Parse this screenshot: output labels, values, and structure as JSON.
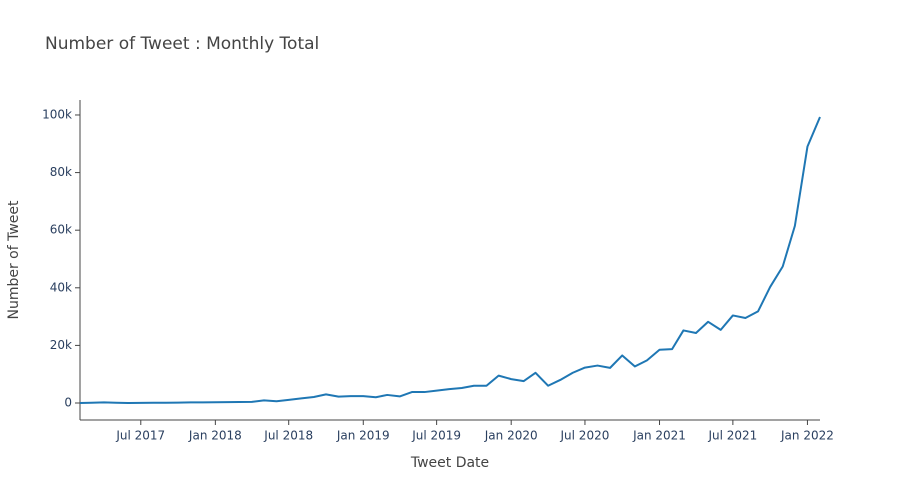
{
  "chart_data": {
    "type": "line",
    "title": "Number of Tweet : Monthly Total",
    "x_label": "Tweet Date",
    "y_label": "Number of Tweet",
    "x": [
      "2017-02",
      "2017-03",
      "2017-04",
      "2017-05",
      "2017-06",
      "2017-07",
      "2017-08",
      "2017-09",
      "2017-10",
      "2017-11",
      "2017-12",
      "2018-01",
      "2018-02",
      "2018-03",
      "2018-04",
      "2018-05",
      "2018-06",
      "2018-07",
      "2018-08",
      "2018-09",
      "2018-10",
      "2018-11",
      "2018-12",
      "2019-01",
      "2019-02",
      "2019-03",
      "2019-04",
      "2019-05",
      "2019-06",
      "2019-07",
      "2019-08",
      "2019-09",
      "2019-10",
      "2019-11",
      "2019-12",
      "2020-01",
      "2020-02",
      "2020-03",
      "2020-04",
      "2020-05",
      "2020-06",
      "2020-07",
      "2020-08",
      "2020-09",
      "2020-10",
      "2020-11",
      "2020-12",
      "2021-01",
      "2021-02",
      "2021-03",
      "2021-04",
      "2021-05",
      "2021-06",
      "2021-07",
      "2021-08",
      "2021-09",
      "2021-10",
      "2021-11",
      "2021-12",
      "2022-01",
      "2022-02"
    ],
    "series": [
      {
        "color": "#1f77b4",
        "values": [
          0,
          100,
          200,
          100,
          0,
          50,
          100,
          100,
          150,
          200,
          200,
          250,
          300,
          350,
          400,
          900,
          600,
          1100,
          1600,
          2100,
          3000,
          2200,
          2400,
          2400,
          2000,
          2800,
          2300,
          3800,
          3800,
          4300,
          4800,
          5200,
          6000,
          6000,
          9500,
          8300,
          7600,
          10500,
          6000,
          8000,
          10500,
          12300,
          13000,
          12200,
          16500,
          12700,
          14800,
          18500,
          18700,
          25200,
          24300,
          28200,
          25400,
          30400,
          29500,
          31800,
          40300,
          47400,
          61500,
          89000,
          99300
        ]
      }
    ],
    "xlim": [
      "2017-02",
      "2022-02"
    ],
    "xticks": [
      {
        "value": "2017-07",
        "label": "Jul 2017"
      },
      {
        "value": "2018-01",
        "label": "Jan 2018"
      },
      {
        "value": "2018-07",
        "label": "Jul 2018"
      },
      {
        "value": "2019-01",
        "label": "Jan 2019"
      },
      {
        "value": "2019-07",
        "label": "Jul 2019"
      },
      {
        "value": "2020-01",
        "label": "Jan 2020"
      },
      {
        "value": "2020-07",
        "label": "Jul 2020"
      },
      {
        "value": "2021-01",
        "label": "Jan 2021"
      },
      {
        "value": "2021-07",
        "label": "Jul 2021"
      },
      {
        "value": "2022-01",
        "label": "Jan 2022"
      }
    ],
    "ylim": [
      -5900,
      105200
    ],
    "yticks": [
      0,
      {
        "value": 20000,
        "label": "20k"
      },
      {
        "value": 40000,
        "label": "40k"
      },
      {
        "value": 60000,
        "label": "60k"
      },
      {
        "value": 80000,
        "label": "80k"
      },
      {
        "value": 100000,
        "label": "100k"
      }
    ],
    "grid": false
  }
}
